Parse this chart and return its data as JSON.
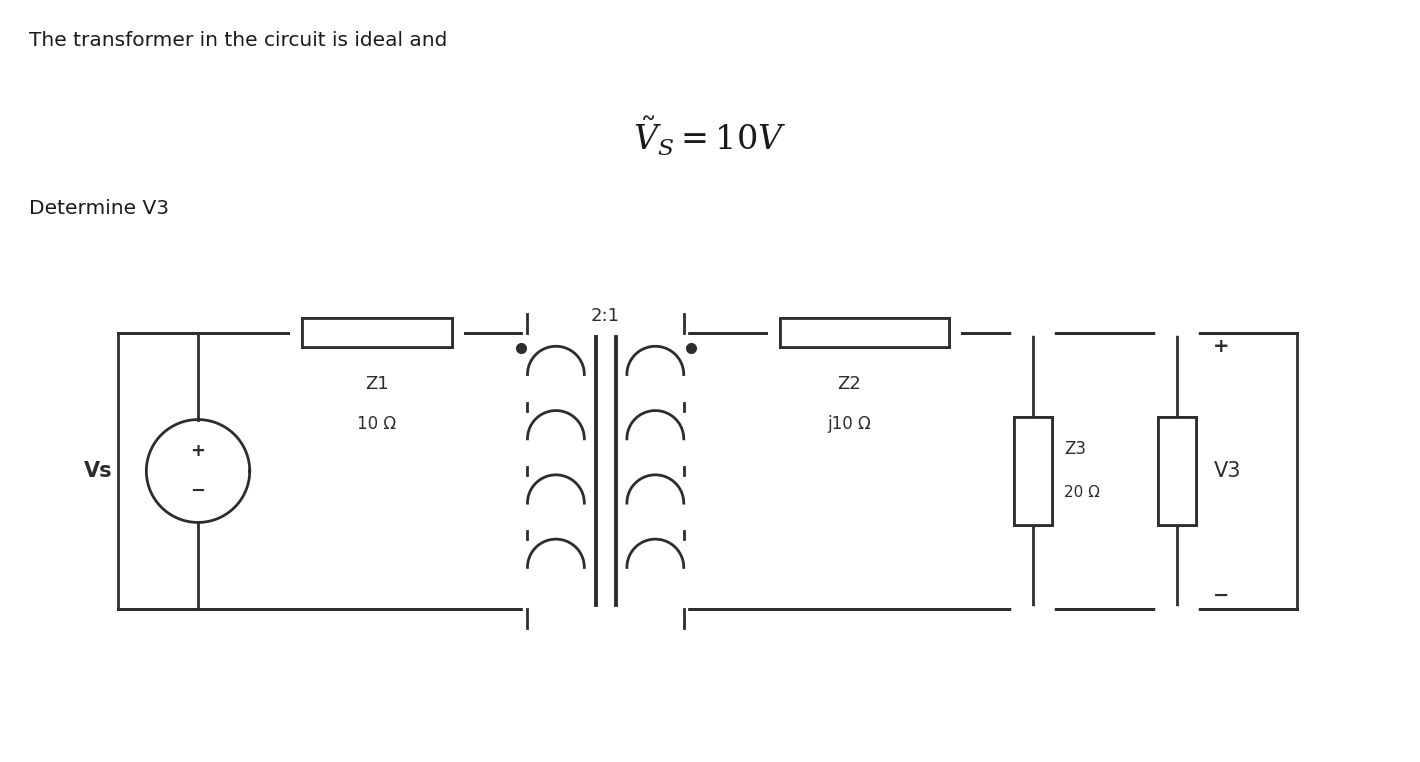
{
  "title_text": "The transformer in the circuit is ideal and",
  "equation_text": "$\\tilde{V}_S = 10V$",
  "subtitle_text": "Determine V3",
  "bg_color": "#ffffff",
  "line_color": "#2d2d2d",
  "lw": 2.0,
  "fig_w": 14.2,
  "fig_h": 7.62,
  "dpi": 100,
  "vs_label": "Vs",
  "z1_label": "Z1",
  "z1_value": "10 Ω",
  "transformer_ratio": "2:1",
  "z2_label": "Z2",
  "z2_value": "j10 Ω",
  "z3_label": "Z3",
  "z3_value": "20 Ω",
  "v3_label": "V3"
}
